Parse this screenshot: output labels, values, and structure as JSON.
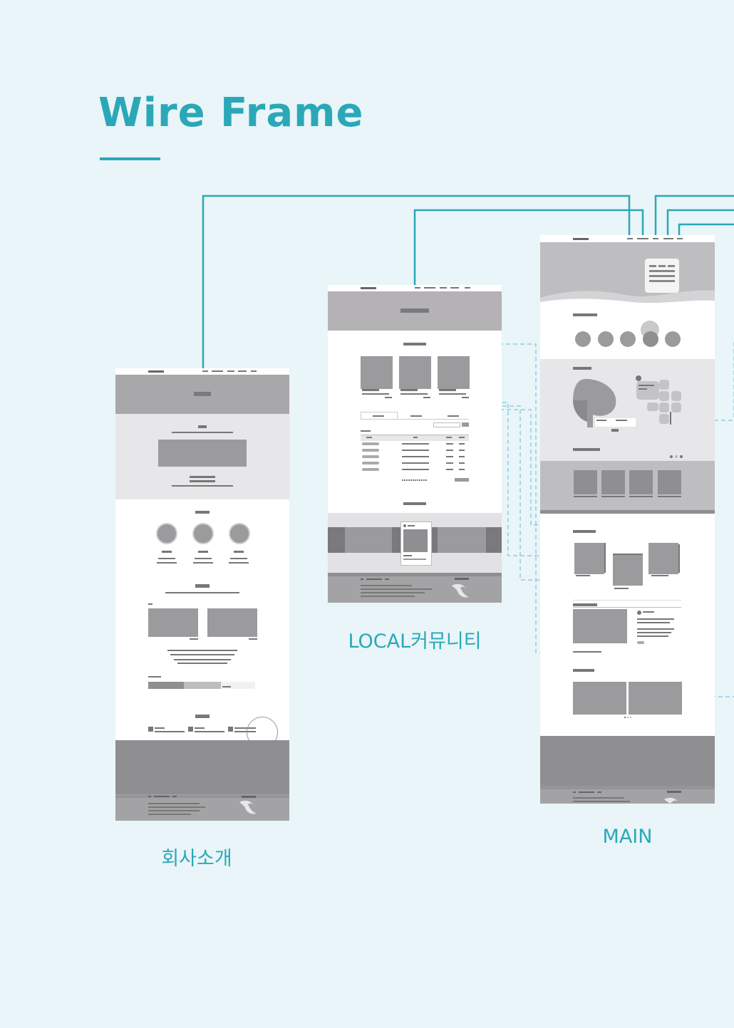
{
  "header": {
    "title": "Wire Frame"
  },
  "frames": {
    "company": {
      "caption": "회사소개"
    },
    "community": {
      "caption": "LOCAL커뮤니티"
    },
    "main": {
      "caption": "MAIN"
    }
  },
  "colors": {
    "accent": "#2aa8b8",
    "background": "#e9f5f8",
    "wire_dashed": "#8fcfe0",
    "block_dark": "#8f8f92",
    "block_mid": "#a8a7a9",
    "block_light": "#e7e6e8"
  }
}
